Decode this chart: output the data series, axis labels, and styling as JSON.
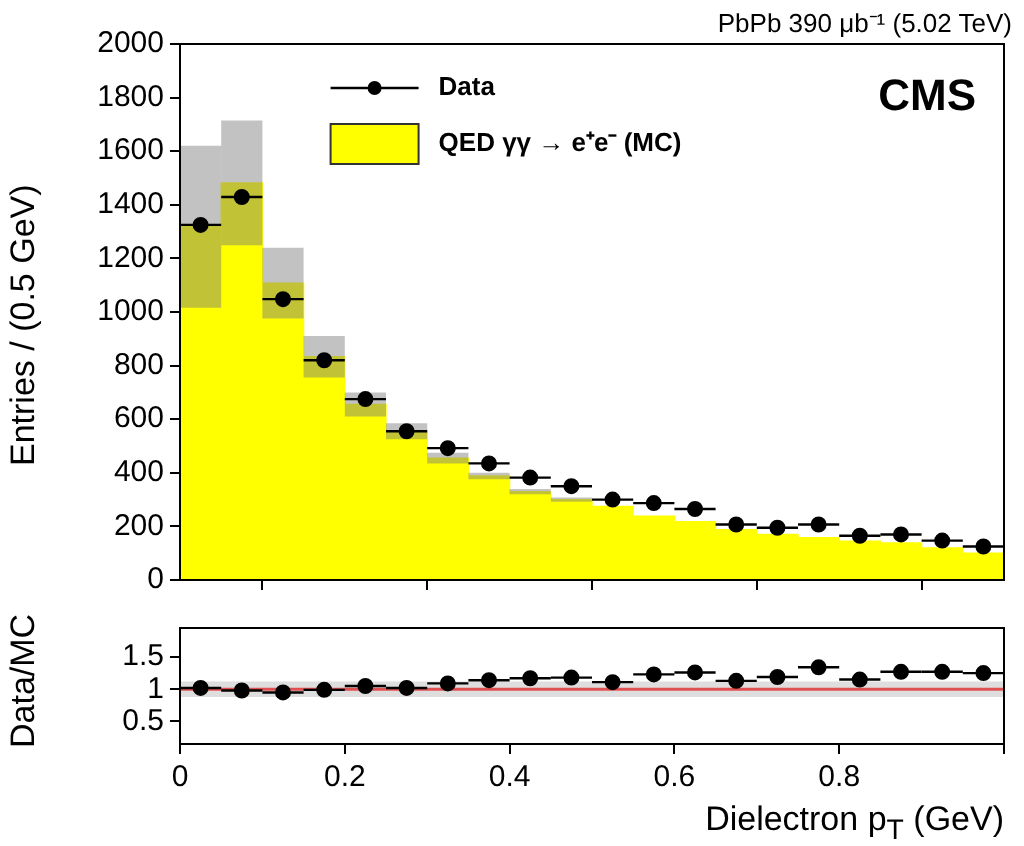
{
  "chart_data": [
    {
      "type": "histogram",
      "title": "PbPb 390 μb⁻¹ (5.02 TeV)",
      "ylabel": "Entries / (0.5 GeV)",
      "bins": [
        0,
        0.05,
        0.1,
        0.15,
        0.2,
        0.25,
        0.3,
        0.35,
        0.4,
        0.45,
        0.5,
        0.55,
        0.6,
        0.65,
        0.7,
        0.75,
        0.8,
        0.85,
        0.9,
        0.95,
        1.0
      ],
      "series": [
        {
          "name": "Data",
          "type": "scatter",
          "color": "#000000",
          "x": [
            0.025,
            0.075,
            0.125,
            0.175,
            0.225,
            0.275,
            0.325,
            0.375,
            0.425,
            0.475,
            0.525,
            0.575,
            0.625,
            0.675,
            0.725,
            0.775,
            0.825,
            0.875,
            0.925,
            0.975
          ],
          "values": [
            1325,
            1429,
            1048,
            820,
            675,
            555,
            492,
            435,
            382,
            350,
            300,
            287,
            265,
            207,
            195,
            207,
            165,
            170,
            147,
            125
          ],
          "xerrors": [
            0.025,
            0.025,
            0.025,
            0.025,
            0.025,
            0.025,
            0.025,
            0.025,
            0.025,
            0.025,
            0.025,
            0.025,
            0.025,
            0.025,
            0.025,
            0.025,
            0.025,
            0.025,
            0.025,
            0.025
          ]
        },
        {
          "name": "QED γγ → e⁺e⁻ (MC)",
          "color": "#ffff00",
          "values": [
            1318,
            1482,
            1108,
            833,
            655,
            555,
            455,
            388,
            330,
            300,
            275,
            238,
            218,
            188,
            170,
            158,
            145,
            138,
            120,
            100
          ],
          "errors": [
            [
              1016,
              1620
            ],
            [
              1249,
              1715
            ],
            [
              976,
              1240
            ],
            [
              756,
              910
            ],
            [
              610,
              700
            ],
            [
              525,
              585
            ],
            [
              435,
              475
            ],
            [
              376,
              400
            ],
            [
              320,
              340
            ],
            [
              292,
              308
            ],
            null,
            null,
            null,
            null,
            null,
            null,
            null,
            null,
            null,
            null
          ]
        }
      ],
      "xlim": [
        0,
        1.0
      ],
      "xticks": [
        0,
        0.2,
        0.4,
        0.6,
        0.8,
        1.0
      ],
      "ylim": [
        0,
        2000
      ],
      "yticks": [
        0,
        200,
        400,
        600,
        800,
        1000,
        1200,
        1400,
        1600,
        1800,
        2000
      ],
      "tick_labels": "y",
      "legend": "top",
      "marker": "circle",
      "annotations": [
        "CMS"
      ]
    },
    {
      "type": "scatter",
      "ylabel": "Data/MC",
      "xlabel": "Dielectron p$_{T}$ (GeV)",
      "series": [
        {
          "color": "#000000",
          "x": [
            0.025,
            0.075,
            0.125,
            0.175,
            0.225,
            0.275,
            0.325,
            0.375,
            0.425,
            0.475,
            0.525,
            0.575,
            0.625,
            0.675,
            0.725,
            0.775,
            0.825,
            0.875,
            0.925,
            0.975
          ],
          "values": [
            1.02,
            0.98,
            0.95,
            0.99,
            1.05,
            1.02,
            1.09,
            1.14,
            1.17,
            1.18,
            1.11,
            1.23,
            1.26,
            1.13,
            1.19,
            1.34,
            1.15,
            1.27,
            1.27,
            1.25
          ],
          "xerrors": [
            0.025,
            0.025,
            0.025,
            0.025,
            0.025,
            0.025,
            0.025,
            0.025,
            0.025,
            0.025,
            0.025,
            0.025,
            0.025,
            0.025,
            0.025,
            0.025,
            0.025,
            0.025,
            0.025,
            0.025
          ]
        }
      ],
      "ref_lines": [
        {
          "axis": "y",
          "value": 1,
          "color": "#e05050"
        }
      ],
      "bands": [
        {
          "axis": "y",
          "from": 0.88,
          "to": 1.12,
          "color": "#c8c8c8"
        }
      ],
      "xlim": [
        0,
        1.0
      ],
      "xticks": [
        0,
        0.2,
        0.4,
        0.6,
        0.8,
        {
          "value": 1.0,
          "label": null
        }
      ],
      "ylim": [
        0.15,
        1.95
      ],
      "yticks": [
        0.5,
        1,
        1.5
      ],
      "marker": "circle"
    }
  ]
}
